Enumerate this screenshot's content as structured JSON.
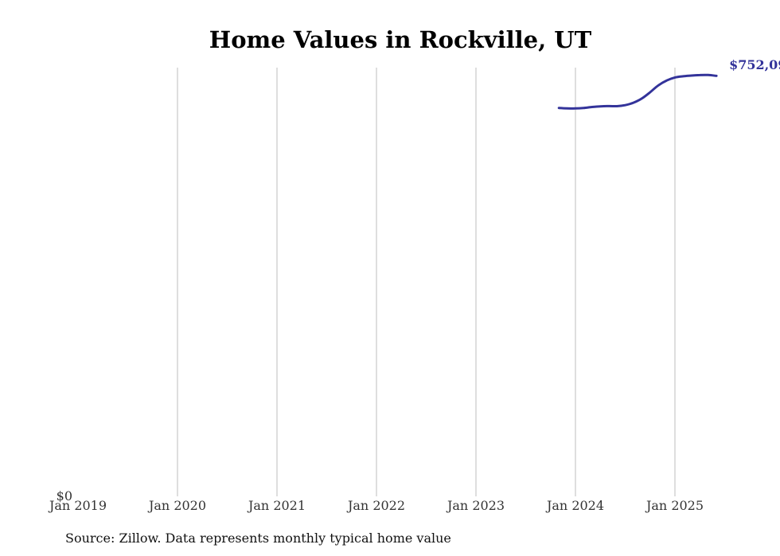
{
  "chart_data": {
    "type": "line",
    "title": "Home Values in Rockville, UT",
    "x_ticks": [
      "Jan 2019",
      "Jan 2020",
      "Jan 2021",
      "Jan 2022",
      "Jan 2023",
      "Jan 2024",
      "Jan 2025"
    ],
    "y_ticks": [
      "$0"
    ],
    "xlim": [
      "2019-01",
      "2025-07"
    ],
    "ylim": [
      0,
      760000
    ],
    "grid": "vertical",
    "line_color": "#33339a",
    "series": [
      {
        "x": [
          "2023-11",
          "2023-12",
          "2024-01",
          "2024-02",
          "2024-03",
          "2024-04",
          "2024-05",
          "2024-06",
          "2024-07",
          "2024-08",
          "2024-09",
          "2024-10",
          "2024-11",
          "2024-12",
          "2025-01",
          "2025-02",
          "2025-03",
          "2025-04",
          "2025-05",
          "2025-06"
        ],
        "values": [
          688500,
          687800,
          687600,
          688400,
          690200,
          691300,
          691800,
          691600,
          693500,
          697800,
          705200,
          716300,
          728600,
          737200,
          742500,
          744600,
          745900,
          746800,
          746900,
          745300
        ]
      }
    ],
    "end_label": "$752,09"
  },
  "source": "Source: Zillow. Data represents monthly typical home value"
}
